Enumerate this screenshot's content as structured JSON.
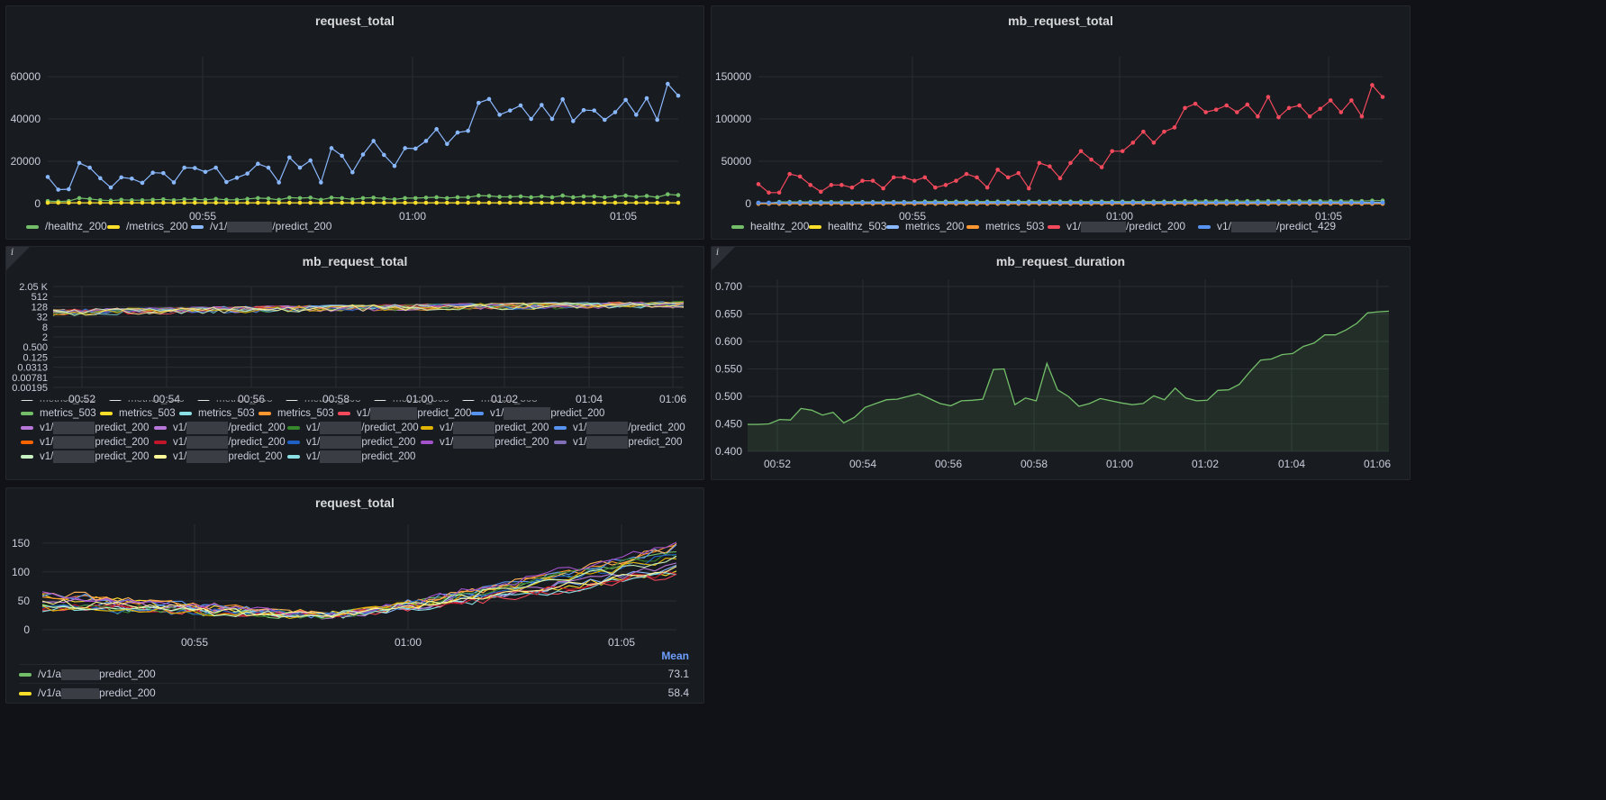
{
  "colors": {
    "green": "#73bf69",
    "yellow": "#fade2a",
    "blue": "#8ab8ff",
    "orange": "#ff9830",
    "red": "#f2495c",
    "blue2": "#5794f2",
    "purple": "#b877d9",
    "cyan": "#8ae0e5",
    "peach": "#ffb357",
    "darkred": "#c4162a",
    "dkgreen": "#37872d",
    "navy": "#1f60c4",
    "magenta": "#a352cc",
    "gold": "#e0b400",
    "lightgreen": "#c8f2c2",
    "cream": "#fff899",
    "lightcyan": "#96d98d",
    "brown": "#fa6400"
  },
  "panels": {
    "p1": {
      "title": "request_total",
      "legend": [
        "/healthz_200",
        "/metrics_200",
        "/v1/",
        "/predict_200"
      ]
    },
    "p2": {
      "title": "mb_request_total",
      "legend": [
        {
          "pre": "healthz_200"
        },
        {
          "pre": "healthz_503"
        },
        {
          "pre": "metrics_200"
        },
        {
          "pre": "metrics_503"
        },
        {
          "pre": "v1/",
          "post": "/predict_200"
        },
        {
          "pre": "v1/",
          "post": "/predict_429"
        }
      ]
    },
    "p3": {
      "title": "mb_request_total",
      "info": "i",
      "legend_cut": [
        "metrics_503",
        "metrics_503",
        "metrics_503",
        "metrics_503",
        "metrics_503",
        "metrics_503"
      ],
      "legend_row1": [
        "metrics_503",
        "metrics_503",
        "metrics_503",
        "metrics_503",
        "v1/",
        "predict_200",
        "v1/",
        "predict_200"
      ],
      "legend_predict": "predict_200",
      "legend_v1": "v1/",
      "legend_slash_predict": "/predict_200"
    },
    "p4": {
      "title": "mb_request_duration",
      "info": "i"
    },
    "p5": {
      "title": "request_total",
      "legend_header": "Mean",
      "rows": [
        {
          "pre": "/v1/a",
          "post": "predict_200",
          "mean": "73.1"
        },
        {
          "pre": "/v1/a",
          "post": "predict_200",
          "mean": "58.4"
        }
      ]
    }
  },
  "chart_data": [
    {
      "type": "line",
      "title": "request_total",
      "x_ticks": [
        "00:55",
        "01:00",
        "01:05"
      ],
      "y_ticks": [
        "0",
        "20000",
        "40000",
        "60000"
      ],
      "ylim": [
        0,
        66000
      ],
      "series": [
        {
          "name": "/v1/…/predict_200",
          "values": [
            12600,
            6600,
            6800,
            19200,
            17000,
            12000,
            7600,
            12400,
            11800,
            9800,
            14600,
            14400,
            10000,
            17000,
            16800,
            15000,
            17000,
            10200,
            12200,
            14200,
            18800,
            17000,
            10000,
            21800,
            17000,
            20400,
            10000,
            26200,
            22600,
            14800,
            23200,
            29600,
            23000,
            17800,
            26200,
            26000,
            29600,
            35200,
            28200,
            33600,
            34400,
            47600,
            49400,
            42000,
            44000,
            46400,
            40000,
            46600,
            40000,
            49300,
            39000,
            44200,
            44000,
            39600,
            43200,
            49000,
            42000,
            49800,
            39600,
            56600,
            51000
          ]
        },
        {
          "name": "/healthz_200",
          "values": [
            1200,
            1000,
            1200,
            2600,
            2200,
            1600,
            1400,
            1800,
            1600,
            1600,
            1800,
            2000,
            1600,
            2000,
            2000,
            1800,
            2200,
            1800,
            1800,
            2200,
            2600,
            2400,
            1800,
            2800,
            2600,
            2800,
            1800,
            2800,
            2600,
            2000,
            2600,
            2800,
            2400,
            2000,
            2600,
            2600,
            2800,
            3000,
            2600,
            3000,
            3000,
            3800,
            3600,
            3200,
            3200,
            3400,
            3000,
            3400,
            3000,
            3800,
            3000,
            3400,
            3400,
            3000,
            3400,
            3800,
            3200,
            3600,
            3000,
            4400,
            4000
          ]
        },
        {
          "name": "/metrics_200",
          "values": [
            400,
            400,
            400,
            400,
            400,
            400,
            400,
            400,
            400,
            400,
            400,
            400,
            400,
            400,
            400,
            400,
            400,
            400,
            400,
            400,
            400,
            400,
            400,
            400,
            400,
            400,
            400,
            400,
            400,
            400,
            400,
            400,
            400,
            400,
            400,
            400,
            400,
            400,
            400,
            400,
            400,
            400,
            400,
            400,
            400,
            400,
            400,
            400,
            400,
            400,
            400,
            400,
            400,
            400,
            400,
            400,
            400,
            400,
            400,
            400,
            400
          ]
        }
      ]
    },
    {
      "type": "line",
      "title": "mb_request_total",
      "x_ticks": [
        "00:55",
        "01:00",
        "01:05"
      ],
      "y_ticks": [
        "0",
        "50000",
        "100000",
        "150000"
      ],
      "ylim": [
        0,
        165000
      ],
      "series": [
        {
          "name": "v1/…/predict_200",
          "values": [
            23000,
            13000,
            13000,
            35000,
            32000,
            22000,
            14000,
            22000,
            22000,
            19000,
            27000,
            27000,
            18000,
            31000,
            31000,
            27000,
            31000,
            19000,
            22000,
            27000,
            35000,
            31000,
            19000,
            40000,
            31000,
            36000,
            18000,
            48000,
            44000,
            30000,
            48000,
            62000,
            52000,
            43000,
            62000,
            62000,
            72000,
            85000,
            72000,
            85000,
            90000,
            113000,
            118000,
            108000,
            111000,
            116000,
            108000,
            117000,
            103000,
            126000,
            102000,
            113000,
            116000,
            103000,
            112000,
            122000,
            108000,
            122000,
            103000,
            140000,
            126000
          ]
        },
        {
          "name": "healthz_200",
          "values": [
            500,
            500,
            2000,
            2000,
            2000,
            2000,
            2000,
            2000,
            2000,
            2000,
            2000,
            2000,
            2000,
            2000,
            2000,
            2000,
            2500,
            2500,
            2500,
            2500,
            2500,
            2500,
            2500,
            2500,
            2500,
            2500,
            2500,
            2500,
            2500,
            2500,
            2500,
            2500,
            2500,
            2500,
            2500,
            2500,
            2500,
            2500,
            2500,
            2500,
            2500,
            3000,
            3000,
            3000,
            3000,
            3000,
            3000,
            3000,
            3000,
            3000,
            3000,
            3000,
            3000,
            3000,
            3000,
            3000,
            3000,
            3000,
            3000,
            3500,
            3500
          ]
        },
        {
          "name": "metrics_200",
          "values": [
            1000,
            1000,
            1200,
            1200,
            1200,
            1200,
            1200,
            1200,
            1200,
            1200,
            1500,
            1500,
            1500,
            1500,
            1500,
            1500,
            1500,
            1500,
            1500,
            1500,
            1500,
            1500,
            1500,
            1500,
            1500,
            1500,
            1500,
            1500,
            1500,
            1500,
            1500,
            1500,
            1500,
            1500,
            1500,
            1500,
            1500,
            1500,
            1500,
            1500,
            1500,
            1500,
            1500,
            1500,
            1500,
            1500,
            1500,
            1500,
            1500,
            1500,
            1500,
            1500,
            1500,
            1500,
            1500,
            1500,
            1500,
            1500,
            1500,
            1500,
            1500
          ]
        },
        {
          "name": "healthz_503",
          "values": [
            0,
            0,
            0,
            0,
            0,
            0,
            0,
            0,
            0,
            0,
            0,
            0,
            0,
            0,
            0,
            0,
            0,
            0,
            0,
            0,
            0,
            0,
            0,
            0,
            0,
            0,
            0,
            0,
            0,
            0,
            0,
            0,
            0,
            0,
            0,
            0,
            0,
            0,
            0,
            0,
            0,
            0,
            0,
            0,
            0,
            0,
            0,
            0,
            0,
            0,
            0,
            0,
            0,
            0,
            0,
            0,
            0,
            0,
            0,
            0,
            0
          ]
        },
        {
          "name": "metrics_503",
          "values": [
            -200,
            -200,
            -200,
            -200,
            -200,
            -200,
            -200,
            -200,
            -200,
            -200,
            -200,
            -200,
            -200,
            -200,
            -200,
            -200,
            -200,
            -200,
            -200,
            -200,
            -200,
            -200,
            -200,
            -200,
            -200,
            -200,
            -200,
            -200,
            -200,
            -200,
            -200,
            -200,
            -200,
            -200,
            -200,
            -200,
            -200,
            -200,
            -200,
            -200,
            -200,
            -200,
            -200,
            -200,
            -200,
            -200,
            -200,
            -200,
            -200,
            -200,
            -200,
            -200,
            -200,
            -200,
            -200,
            -200,
            -200,
            -200,
            -200,
            -200,
            -200
          ]
        },
        {
          "name": "v1/…/predict_429",
          "values": [
            800,
            800,
            1000,
            1000,
            1000,
            1000,
            1000,
            1000,
            1000,
            1000,
            1000,
            1000,
            1000,
            1000,
            1000,
            1000,
            1000,
            1000,
            1000,
            1000,
            1000,
            1000,
            1000,
            1000,
            1000,
            1000,
            1000,
            1000,
            1000,
            1000,
            1000,
            1000,
            1000,
            1000,
            1000,
            1000,
            1000,
            1000,
            1000,
            1000,
            1000,
            1000,
            1000,
            1000,
            1000,
            1000,
            1000,
            1000,
            1000,
            1000,
            1000,
            1000,
            1000,
            1000,
            1000,
            1000,
            1000,
            1000,
            1000,
            1000,
            1000
          ]
        }
      ]
    },
    {
      "type": "line",
      "title": "mb_request_total",
      "scale": "log2",
      "x_ticks": [
        "00:52",
        "00:54",
        "00:56",
        "00:58",
        "01:00",
        "01:02",
        "01:04",
        "01:06"
      ],
      "y_ticks": [
        "0.00195",
        "0.00781",
        "0.0313",
        "0.125",
        "0.500",
        "2",
        "8",
        "32",
        "128",
        "512",
        "2.05 K"
      ],
      "series_count": 16
    },
    {
      "type": "area",
      "title": "mb_request_duration",
      "x_ticks": [
        "00:52",
        "00:54",
        "00:56",
        "00:58",
        "01:00",
        "01:02",
        "01:04",
        "01:06"
      ],
      "y_ticks": [
        "0.400",
        "0.450",
        "0.500",
        "0.550",
        "0.600",
        "0.650",
        "0.700"
      ],
      "ylim": [
        0.4,
        0.7
      ],
      "series": [
        {
          "values": [
            0.449,
            0.449,
            0.45,
            0.458,
            0.457,
            0.478,
            0.475,
            0.466,
            0.471,
            0.452,
            0.462,
            0.48,
            0.487,
            0.494,
            0.495,
            0.5,
            0.505,
            0.496,
            0.487,
            0.483,
            0.492,
            0.493,
            0.495,
            0.549,
            0.55,
            0.485,
            0.497,
            0.492,
            0.56,
            0.512,
            0.5,
            0.482,
            0.487,
            0.496,
            0.492,
            0.488,
            0.485,
            0.487,
            0.501,
            0.494,
            0.515,
            0.497,
            0.492,
            0.493,
            0.511,
            0.512,
            0.522,
            0.545,
            0.566,
            0.568,
            0.576,
            0.578,
            0.591,
            0.597,
            0.612,
            0.612,
            0.621,
            0.633,
            0.652,
            0.654,
            0.655
          ]
        }
      ]
    },
    {
      "type": "line",
      "title": "request_total",
      "x_ticks": [
        "00:55",
        "01:00",
        "01:05"
      ],
      "y_ticks": [
        "0",
        "50",
        "100",
        "150"
      ],
      "ylim": [
        0,
        170
      ],
      "series_count": 16
    }
  ]
}
